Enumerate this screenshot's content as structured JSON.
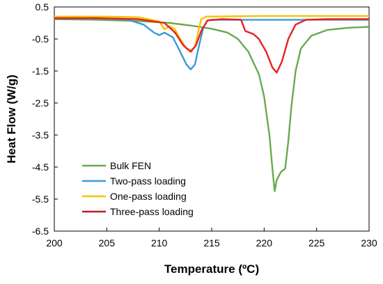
{
  "chart_data": {
    "type": "line",
    "title": "",
    "xlabel": "Temperature (ºC)",
    "ylabel": "Heat Flow (W/g)",
    "xlim": [
      200,
      230
    ],
    "ylim": [
      -6.5,
      0.5
    ],
    "xticks": [
      "200",
      "205",
      "210",
      "215",
      "220",
      "225",
      "230"
    ],
    "yticks": [
      "0.5",
      "-0.5",
      "-1.5",
      "-2.5",
      "-3.5",
      "-4.5",
      "-5.5",
      "-6.5"
    ],
    "grid": false,
    "legend_position": "bottom-left",
    "series": [
      {
        "name": "Bulk FEN",
        "color": "#6aa84f",
        "points": [
          [
            200,
            0.12
          ],
          [
            204,
            0.1
          ],
          [
            208,
            0.06
          ],
          [
            211,
            0.0
          ],
          [
            213,
            -0.08
          ],
          [
            215,
            -0.18
          ],
          [
            216.5,
            -0.3
          ],
          [
            217.5,
            -0.5
          ],
          [
            218.5,
            -0.9
          ],
          [
            219.5,
            -1.6
          ],
          [
            220,
            -2.3
          ],
          [
            220.5,
            -3.5
          ],
          [
            220.8,
            -4.6
          ],
          [
            221,
            -5.25
          ],
          [
            221.2,
            -4.9
          ],
          [
            221.6,
            -4.65
          ],
          [
            222,
            -4.55
          ],
          [
            222.3,
            -3.7
          ],
          [
            222.6,
            -2.6
          ],
          [
            223,
            -1.5
          ],
          [
            223.5,
            -0.8
          ],
          [
            224.5,
            -0.4
          ],
          [
            226,
            -0.22
          ],
          [
            228,
            -0.15
          ],
          [
            230,
            -0.12
          ]
        ]
      },
      {
        "name": "Two-pass loading",
        "color": "#3a9ad9",
        "points": [
          [
            200,
            0.14
          ],
          [
            205,
            0.14
          ],
          [
            207,
            0.1
          ],
          [
            208.5,
            -0.05
          ],
          [
            209.5,
            -0.3
          ],
          [
            210,
            -0.38
          ],
          [
            210.5,
            -0.3
          ],
          [
            211.3,
            -0.45
          ],
          [
            212,
            -0.9
          ],
          [
            212.6,
            -1.3
          ],
          [
            213,
            -1.45
          ],
          [
            213.4,
            -1.3
          ],
          [
            213.8,
            -0.7
          ],
          [
            214.2,
            -0.15
          ],
          [
            214.6,
            0.08
          ],
          [
            215,
            0.1
          ],
          [
            222,
            0.1
          ],
          [
            230,
            0.1
          ]
        ]
      },
      {
        "name": "One-pass loading",
        "color": "#f5c400",
        "points": [
          [
            200,
            0.2
          ],
          [
            205,
            0.2
          ],
          [
            208,
            0.18
          ],
          [
            210,
            0.05
          ],
          [
            210.5,
            -0.2
          ],
          [
            211,
            -0.1
          ],
          [
            211.5,
            -0.2
          ],
          [
            212,
            -0.5
          ],
          [
            212.6,
            -0.8
          ],
          [
            213,
            -0.85
          ],
          [
            213.4,
            -0.75
          ],
          [
            213.7,
            -0.3
          ],
          [
            214,
            0.12
          ],
          [
            214.5,
            0.2
          ],
          [
            220,
            0.22
          ],
          [
            230,
            0.22
          ]
        ]
      },
      {
        "name": "Three-pass loading",
        "color": "#e82020",
        "points": [
          [
            200,
            0.15
          ],
          [
            204,
            0.15
          ],
          [
            208,
            0.12
          ],
          [
            210.5,
            0.0
          ],
          [
            211.5,
            -0.3
          ],
          [
            212.3,
            -0.7
          ],
          [
            213,
            -0.9
          ],
          [
            213.5,
            -0.7
          ],
          [
            214,
            -0.25
          ],
          [
            214.6,
            0.08
          ],
          [
            216,
            0.12
          ],
          [
            217.8,
            0.1
          ],
          [
            218.2,
            -0.25
          ],
          [
            219,
            -0.35
          ],
          [
            219.5,
            -0.5
          ],
          [
            220.2,
            -0.9
          ],
          [
            220.8,
            -1.4
          ],
          [
            221.2,
            -1.55
          ],
          [
            221.7,
            -1.2
          ],
          [
            222.3,
            -0.5
          ],
          [
            223,
            -0.05
          ],
          [
            224,
            0.1
          ],
          [
            226,
            0.12
          ],
          [
            230,
            0.12
          ]
        ]
      }
    ]
  },
  "legend": {
    "items": [
      {
        "label": "Bulk FEN",
        "color": "#6aa84f"
      },
      {
        "label": "Two-pass loading",
        "color": "#3a9ad9"
      },
      {
        "label": "One-pass loading",
        "color": "#f5c400"
      },
      {
        "label": "Three-pass loading",
        "color": "#b22222"
      }
    ]
  }
}
